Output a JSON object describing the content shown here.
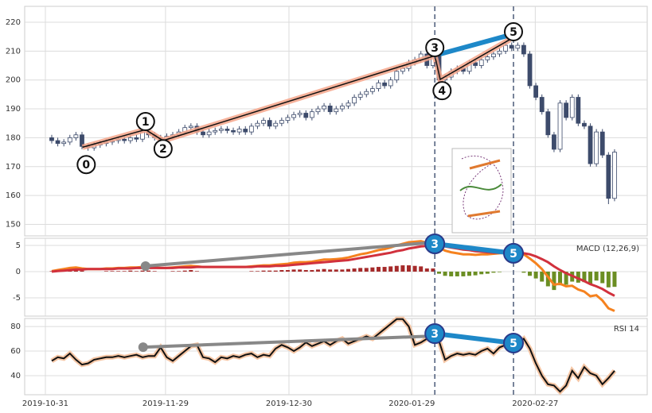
{
  "chart_data": [
    {
      "type": "candlestick",
      "xlim": [
        -4.47,
        98.4
      ],
      "ylim": [
        146,
        225.5
      ],
      "yticks": [
        150,
        160,
        170,
        180,
        190,
        200,
        210,
        220
      ],
      "grid": true,
      "up_color": "#ffffff",
      "down_color": "#3d4b6b",
      "edge_color": "#3d4b6b",
      "open": [
        180,
        179,
        178,
        178.5,
        180,
        181,
        177,
        176.5,
        177.5,
        178,
        178.5,
        179,
        179.5,
        179,
        180,
        179.5,
        182,
        181,
        180,
        179,
        180.5,
        181,
        182,
        183.5,
        184,
        182,
        181,
        182,
        182.5,
        183,
        182.5,
        182,
        183,
        182,
        184,
        185,
        186,
        184,
        185,
        186,
        187,
        188,
        188.5,
        187,
        189,
        190,
        191,
        189,
        190,
        191,
        192,
        194,
        195,
        196,
        197,
        199,
        198,
        200,
        203,
        204,
        206,
        207,
        209,
        205,
        210,
        200,
        201,
        203,
        204,
        203,
        206,
        205,
        207,
        208,
        209,
        210,
        212,
        211,
        212,
        209,
        198,
        194,
        189,
        181,
        176,
        192,
        187,
        194,
        185,
        184,
        171,
        182,
        174,
        159
      ],
      "high": [
        181,
        180,
        179.5,
        181,
        182,
        182,
        178,
        178.5,
        179,
        179.5,
        180,
        180.5,
        180.5,
        181,
        181,
        183,
        183,
        182,
        181,
        181.5,
        182,
        183,
        184.5,
        185,
        185,
        183,
        183,
        183.5,
        184,
        184,
        183.5,
        184,
        184,
        185,
        186,
        187,
        187,
        186,
        187,
        188,
        189,
        189.5,
        189.5,
        190,
        191,
        192,
        192,
        191,
        192,
        193,
        195,
        196,
        197,
        198,
        200,
        200,
        201,
        204,
        205,
        207,
        208,
        210,
        210,
        211,
        211,
        202,
        204,
        205,
        205,
        207,
        207,
        208,
        209,
        210,
        211,
        213,
        213,
        213,
        213,
        210,
        199,
        195,
        190,
        182,
        193,
        193,
        195,
        195,
        186,
        185,
        183,
        183,
        175,
        176
      ],
      "low": [
        178,
        177,
        177,
        177.5,
        179,
        176,
        175.5,
        175.5,
        176.5,
        177,
        177.5,
        178,
        178,
        178,
        178.5,
        178.5,
        180,
        179,
        178,
        178,
        179.5,
        180,
        181,
        182.5,
        181,
        180,
        180,
        181,
        181.5,
        181.5,
        181,
        181,
        181,
        181,
        183,
        184,
        183,
        183,
        184,
        185,
        186,
        187,
        186,
        186,
        188,
        189,
        188,
        188,
        189,
        190,
        191,
        193,
        194,
        195,
        196,
        197,
        197,
        199,
        202,
        203,
        205,
        206,
        204,
        204,
        199,
        199,
        200,
        202,
        202,
        202,
        204,
        204,
        206,
        207,
        208,
        209,
        210,
        210,
        208,
        197,
        193,
        188,
        180,
        175,
        175,
        186,
        186,
        184,
        183,
        170,
        170,
        173,
        157,
        158
      ],
      "close": [
        179,
        178,
        178.5,
        180,
        181,
        177,
        176.5,
        177.5,
        178,
        178.5,
        179,
        179.5,
        179,
        180,
        179.5,
        182,
        181,
        180,
        179,
        180.5,
        181,
        182,
        183.5,
        184,
        182,
        181,
        182,
        182.5,
        183,
        182.5,
        182,
        183,
        182,
        184,
        185,
        186,
        184,
        185,
        186,
        187,
        188,
        188.5,
        187,
        189,
        190,
        191,
        189,
        190,
        191,
        192,
        194,
        195,
        196,
        197,
        199,
        198,
        200,
        203,
        204,
        206,
        207,
        209,
        205,
        210,
        200,
        201,
        203,
        204,
        203,
        206,
        205,
        207,
        208,
        209,
        210,
        212,
        211,
        212,
        209,
        198,
        194,
        189,
        181,
        176,
        192,
        187,
        194,
        185,
        184,
        171,
        182,
        174,
        159,
        175
      ],
      "trendline": {
        "x": [
          5.1,
          15.5,
          18.4,
          63.3,
          64.2,
          75.7
        ],
        "y": [
          176.7,
          182.8,
          179,
          208.4,
          200.2,
          214
        ]
      },
      "link": {
        "x": [
          64.2,
          75.7
        ],
        "y": [
          209,
          215.6
        ]
      },
      "vlines": [
        63.3,
        76.3
      ],
      "markers": [
        {
          "label": "0",
          "x": 5.7,
          "y": 170.7
        },
        {
          "label": "1",
          "x": 15.5,
          "y": 185.6
        },
        {
          "label": "2",
          "x": 18.4,
          "y": 176.2
        },
        {
          "label": "3",
          "x": 63.3,
          "y": 211.2
        },
        {
          "label": "4",
          "x": 64.5,
          "y": 196.3
        },
        {
          "label": "5",
          "x": 76.3,
          "y": 216.7
        }
      ]
    },
    {
      "type": "macd",
      "label": "MACD (12,26,9)",
      "xlim": [
        -4.47,
        98.4
      ],
      "ylim": [
        -8.48,
        6.36
      ],
      "yticks": [
        -5,
        0,
        5
      ],
      "grid": true,
      "series": [
        {
          "name": "MACD",
          "color": "#f5821f",
          "values": [
            0.1,
            0.3,
            0.5,
            0.7,
            0.8,
            0.6,
            0.5,
            0.5,
            0.5,
            0.6,
            0.6,
            0.7,
            0.7,
            0.8,
            0.8,
            0.9,
            0.9,
            0.8,
            0.7,
            0.7,
            0.8,
            0.9,
            1.0,
            1.1,
            1.0,
            0.9,
            0.9,
            0.9,
            0.9,
            0.9,
            0.9,
            0.9,
            0.9,
            1.0,
            1.1,
            1.2,
            1.2,
            1.3,
            1.4,
            1.5,
            1.7,
            1.8,
            1.8,
            1.9,
            2.1,
            2.3,
            2.3,
            2.4,
            2.5,
            2.7,
            3.0,
            3.3,
            3.5,
            3.8,
            4.1,
            4.3,
            4.6,
            5.0,
            5.3,
            5.6,
            5.7,
            5.8,
            5.5,
            5.6,
            4.6,
            4.0,
            3.7,
            3.5,
            3.3,
            3.3,
            3.2,
            3.3,
            3.3,
            3.4,
            3.5,
            3.6,
            3.6,
            3.6,
            3.3,
            2.5,
            1.6,
            0.5,
            -1.0,
            -2.5,
            -2.3,
            -2.8,
            -2.7,
            -3.4,
            -3.8,
            -4.7,
            -4.5,
            -5.5,
            -7.0,
            -7.5
          ]
        },
        {
          "name": "Signal",
          "color": "#d1313d",
          "values": [
            0.0,
            0.1,
            0.2,
            0.3,
            0.4,
            0.4,
            0.5,
            0.5,
            0.5,
            0.5,
            0.5,
            0.6,
            0.6,
            0.6,
            0.7,
            0.7,
            0.7,
            0.7,
            0.7,
            0.7,
            0.7,
            0.8,
            0.8,
            0.8,
            0.9,
            0.9,
            0.9,
            0.9,
            0.9,
            0.9,
            0.9,
            0.9,
            0.9,
            0.9,
            1.0,
            1.0,
            1.0,
            1.1,
            1.1,
            1.2,
            1.3,
            1.4,
            1.5,
            1.6,
            1.7,
            1.8,
            1.9,
            2.0,
            2.1,
            2.2,
            2.4,
            2.6,
            2.8,
            3.0,
            3.2,
            3.4,
            3.6,
            3.9,
            4.1,
            4.4,
            4.6,
            4.8,
            4.9,
            5.0,
            5.0,
            4.8,
            4.6,
            4.4,
            4.2,
            4.1,
            3.9,
            3.8,
            3.7,
            3.6,
            3.6,
            3.6,
            3.6,
            3.6,
            3.5,
            3.3,
            2.9,
            2.4,
            1.8,
            1.0,
            0.3,
            -0.3,
            -0.8,
            -1.3,
            -1.8,
            -2.4,
            -2.8,
            -3.3,
            -4.0,
            -4.6
          ]
        }
      ],
      "histogram": {
        "pos_color": "#a52a2a",
        "neg_color": "#6b8e23",
        "values": [
          0.1,
          0.2,
          0.3,
          0.4,
          0.4,
          0.2,
          0,
          0,
          0,
          0.1,
          0.1,
          0.1,
          0.1,
          0.2,
          0.1,
          0.2,
          0.2,
          0.1,
          0,
          0,
          0.1,
          0.1,
          0.2,
          0.3,
          0.1,
          0,
          0,
          0,
          0,
          0,
          0,
          0,
          0,
          0.1,
          0.1,
          0.2,
          0.2,
          0.2,
          0.3,
          0.3,
          0.4,
          0.4,
          0.3,
          0.3,
          0.4,
          0.5,
          0.4,
          0.4,
          0.4,
          0.5,
          0.6,
          0.7,
          0.7,
          0.8,
          0.9,
          0.9,
          1.0,
          1.1,
          1.2,
          1.2,
          1.1,
          1.0,
          0.6,
          0.6,
          -0.4,
          -0.8,
          -0.9,
          -0.9,
          -0.9,
          -0.8,
          -0.7,
          -0.5,
          -0.4,
          -0.2,
          -0.1,
          0,
          0,
          0,
          -0.2,
          -0.8,
          -1.3,
          -1.9,
          -2.8,
          -3.5,
          -2.6,
          -2.5,
          -1.9,
          -2.1,
          -2.0,
          -2.3,
          -1.7,
          -2.2,
          -3.0,
          -2.9
        ]
      },
      "guide": {
        "x": [
          15.5,
          63.3
        ],
        "y": [
          1.06,
          5.6
        ]
      },
      "link": {
        "x": [
          63.3,
          76.3
        ],
        "y": [
          5.3,
          3.5
        ]
      },
      "vlines": [
        63.3,
        76.3
      ],
      "markers": [
        {
          "label": "3",
          "x": 63.3,
          "y": 5.3
        },
        {
          "label": "5",
          "x": 76.3,
          "y": 3.5
        }
      ]
    },
    {
      "type": "line",
      "label": "RSI 14",
      "xlim": [
        -4.47,
        98.4
      ],
      "ylim": [
        24.5,
        86.5
      ],
      "yticks": [
        40,
        60,
        80
      ],
      "grid": true,
      "xticks": [
        {
          "value": -1.05,
          "label": "2019-10-31"
        },
        {
          "value": 18.8,
          "label": "2019-11-29"
        },
        {
          "value": 39.2,
          "label": "2019-12-30"
        },
        {
          "value": 59.5,
          "label": "2020-01-29"
        },
        {
          "value": 79.9,
          "label": "2020-02-27"
        }
      ],
      "color": "#111111",
      "values": [
        52,
        55,
        54,
        58,
        53,
        49,
        50,
        53,
        54,
        55,
        55,
        56,
        55,
        56,
        57,
        55,
        56,
        56,
        63,
        55,
        52,
        56,
        60,
        64,
        65,
        55,
        54,
        51,
        55,
        54,
        56,
        55,
        57,
        58,
        55,
        57,
        56,
        62,
        65,
        63,
        60,
        63,
        67,
        64,
        66,
        68,
        65,
        68,
        70,
        66,
        68,
        70,
        72,
        70,
        74,
        78,
        82,
        86,
        86,
        80,
        65,
        67,
        70,
        72,
        68,
        53,
        56,
        58,
        57,
        58,
        57,
        60,
        62,
        58,
        63,
        65,
        62,
        66,
        70,
        62,
        50,
        40,
        33,
        32,
        27,
        32,
        44,
        38,
        47,
        42,
        40,
        33,
        38,
        44
      ],
      "guide": {
        "x": [
          15.1,
          63.3
        ],
        "y": [
          63.2,
          72.3
        ]
      },
      "link": {
        "x": [
          63.3,
          76.3
        ],
        "y": [
          74.2,
          66.5
        ]
      },
      "vlines": [
        63.3,
        76.3
      ],
      "markers": [
        {
          "label": "3",
          "x": 63.3,
          "y": 74.2
        },
        {
          "label": "5",
          "x": 76.3,
          "y": 66.5
        }
      ]
    }
  ]
}
